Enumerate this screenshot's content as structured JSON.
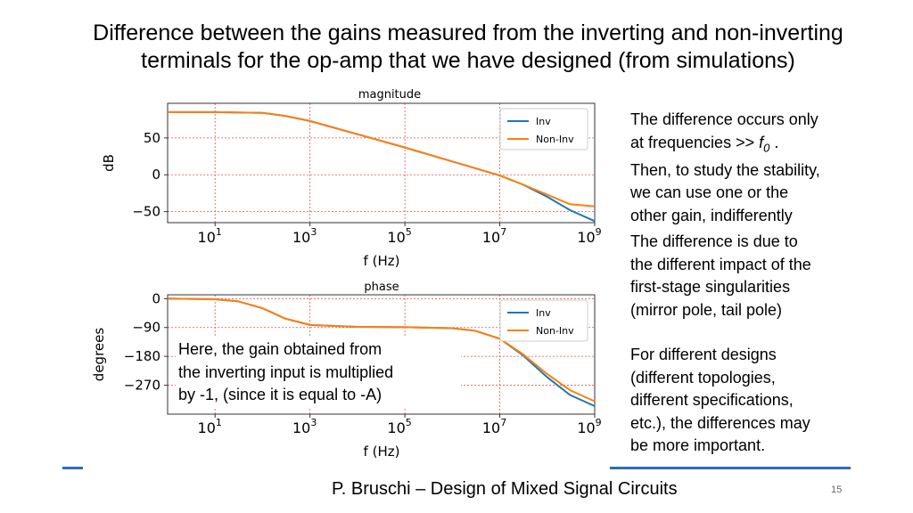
{
  "slide": {
    "title_line1": "Difference between the gains measured from the inverting and non-inverting",
    "title_line2": "terminals for the op-amp that we have designed (from simulations)",
    "right_text_1": {
      "line1": "The difference occurs only",
      "line2_pre": "at frequencies >> ",
      "line2_sym": "f",
      "line2_sub": "0",
      "line2_post": " .",
      "line3": "Then, to study the stability,",
      "line4": "we can use one or the",
      "line5": "other gain, indifferently"
    },
    "right_text_2": [
      "The difference is due to",
      "the different impact of the",
      "first-stage singularities",
      "(mirror pole, tail pole)"
    ],
    "right_text_3": [
      "For different designs",
      "(different topologies,",
      "different specifications,",
      "etc.), the differences may",
      "be more important."
    ],
    "overlay_note": [
      "Here, the gain obtained from",
      "the inverting input is multiplied",
      "by -1, (since it is equal to -A)"
    ],
    "footer": "P. Bruschi – Design of Mixed Signal Circuits",
    "page_number": "15",
    "colors": {
      "inv": "#1f77b4",
      "non_inv": "#ff7f0e",
      "grid": "#e05050",
      "footer_line": "#2f6eb5"
    }
  },
  "chart_data": [
    {
      "type": "line",
      "title": "magnitude",
      "xlabel": "f (Hz)",
      "ylabel": "dB",
      "xscale": "log",
      "xlim": [
        1,
        1000000000
      ],
      "ylim": [
        -65,
        97
      ],
      "xticks": [
        10,
        1000,
        100000,
        10000000,
        1000000000
      ],
      "xtick_labels": [
        [
          "10",
          "1"
        ],
        [
          "10",
          "3"
        ],
        [
          "10",
          "5"
        ],
        [
          "10",
          "7"
        ],
        [
          "10",
          "9"
        ]
      ],
      "yticks": [
        50,
        0,
        -50
      ],
      "ytick_labels": [
        "50",
        "0",
        "−50"
      ],
      "grid": true,
      "legend": "top-right",
      "series": [
        {
          "name": "Inv",
          "x": [
            1,
            10,
            100,
            300,
            1000,
            10000,
            100000,
            1000000,
            10000000,
            30000000,
            100000000,
            300000000,
            1000000000
          ],
          "y": [
            85,
            85,
            84,
            80,
            73,
            55,
            37,
            18,
            -1,
            -13,
            -30,
            -48,
            -63
          ]
        },
        {
          "name": "Non-Inv",
          "x": [
            1,
            10,
            100,
            300,
            1000,
            10000,
            100000,
            1000000,
            10000000,
            30000000,
            100000000,
            300000000,
            1000000000
          ],
          "y": [
            85,
            85,
            84,
            80,
            73,
            55,
            37,
            18,
            -1,
            -13,
            -27,
            -40,
            -43
          ]
        }
      ]
    },
    {
      "type": "line",
      "title": "phase",
      "xlabel": "f (Hz)",
      "ylabel": "degrees",
      "xscale": "log",
      "xlim": [
        1,
        1000000000
      ],
      "ylim": [
        -360,
        12
      ],
      "xticks": [
        10,
        1000,
        100000,
        10000000,
        1000000000
      ],
      "xtick_labels": [
        [
          "10",
          "1"
        ],
        [
          "10",
          "3"
        ],
        [
          "10",
          "5"
        ],
        [
          "10",
          "7"
        ],
        [
          "10",
          "9"
        ]
      ],
      "yticks": [
        0,
        -90,
        -180,
        -270
      ],
      "ytick_labels": [
        "0",
        "−90",
        "−180",
        "−270"
      ],
      "grid": true,
      "legend": "top-right",
      "series": [
        {
          "name": "Inv",
          "x": [
            1,
            10,
            30,
            100,
            300,
            1000,
            10000,
            100000,
            1000000,
            3000000,
            10000000,
            30000000,
            100000000,
            300000000,
            1000000000
          ],
          "y": [
            0,
            -2,
            -8,
            -30,
            -62,
            -82,
            -88,
            -89,
            -92,
            -100,
            -125,
            -175,
            -245,
            -300,
            -335
          ]
        },
        {
          "name": "Non-Inv",
          "x": [
            1,
            10,
            30,
            100,
            300,
            1000,
            10000,
            100000,
            1000000,
            3000000,
            10000000,
            30000000,
            100000000,
            300000000,
            1000000000
          ],
          "y": [
            0,
            -2,
            -8,
            -30,
            -62,
            -82,
            -88,
            -89,
            -92,
            -100,
            -125,
            -172,
            -235,
            -285,
            -320
          ]
        }
      ]
    }
  ]
}
